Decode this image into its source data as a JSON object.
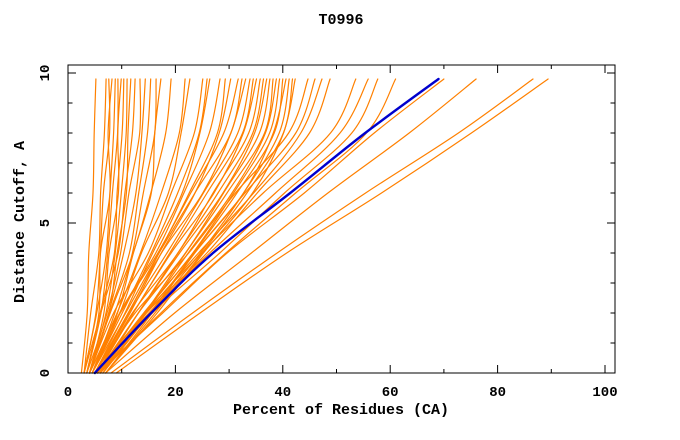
{
  "title": "T0996",
  "colors": {
    "orange_curve": "#ff8000",
    "blue_curve": "#0000cd",
    "axis": "#000000",
    "background": "#ffffff"
  },
  "chart_data": {
    "type": "line",
    "title": "T0996",
    "xlabel": "Percent of Residues (CA)",
    "ylabel": "Distance Cutoff, A",
    "x_axis": {
      "label": "Percent of Residues (CA)",
      "range": [
        0,
        101.9
      ],
      "major_ticks": [
        0,
        20,
        40,
        60,
        80,
        100
      ],
      "minor_ticks": [
        10,
        30,
        50,
        70,
        90
      ]
    },
    "y_axis": {
      "label": "Distance Cutoff, A",
      "range": [
        0,
        10.27
      ],
      "major_ticks": [
        0,
        5,
        10
      ],
      "minor_ticks": [
        1,
        2,
        3,
        4,
        6,
        7,
        8,
        9
      ]
    },
    "grid": false,
    "legend": null,
    "cutoffs": [
      0,
      2,
      4,
      6,
      8,
      9.8
    ],
    "blue_curve_percent_at_cutoffs": [
      5,
      15,
      27.5,
      41,
      55.5,
      69
    ],
    "orange_curves_percent_at_cutoffs": [
      [
        2.5,
        3.5,
        4.0,
        4.5,
        5.0,
        5.2
      ],
      [
        3.0,
        4.5,
        5.5,
        6.2,
        6.8,
        7.1
      ],
      [
        3.0,
        5.0,
        6.0,
        6.8,
        7.4,
        7.6
      ],
      [
        3.5,
        5.5,
        6.5,
        7.3,
        7.9,
        8.2
      ],
      [
        3.0,
        5.5,
        7.0,
        7.9,
        8.5,
        8.8
      ],
      [
        3.5,
        6.0,
        7.4,
        8.4,
        9.0,
        9.3
      ],
      [
        4.0,
        6.5,
        8.0,
        9.0,
        9.6,
        9.9
      ],
      [
        3.5,
        6.5,
        8.2,
        9.4,
        10.1,
        10.4
      ],
      [
        4.0,
        7.0,
        8.8,
        10.0,
        10.7,
        11.0
      ],
      [
        4.0,
        7.5,
        9.4,
        10.6,
        11.4,
        11.7
      ],
      [
        3.0,
        6.5,
        9.0,
        10.8,
        12.0,
        12.5
      ],
      [
        3.5,
        7.0,
        9.8,
        11.6,
        12.9,
        13.4
      ],
      [
        4.0,
        7.5,
        10.5,
        12.5,
        13.9,
        14.4
      ],
      [
        4.0,
        8.0,
        11.2,
        13.3,
        14.8,
        15.4
      ],
      [
        4.5,
        8.5,
        12.0,
        14.2,
        15.8,
        16.4
      ],
      [
        4.5,
        9.0,
        12.6,
        15.0,
        16.6,
        17.3
      ],
      [
        4.0,
        8.0,
        12.0,
        15.5,
        18.2,
        19.2
      ],
      [
        4.0,
        9.0,
        13.5,
        17.5,
        20.5,
        21.8
      ],
      [
        4.5,
        9.5,
        14.0,
        18.3,
        21.4,
        22.7
      ],
      [
        4.0,
        9.0,
        14.5,
        19.5,
        23.5,
        25.1
      ],
      [
        4.5,
        10.0,
        15.5,
        20.5,
        24.3,
        25.9
      ],
      [
        5.0,
        10.5,
        16.0,
        21.0,
        24.8,
        26.4
      ],
      [
        4.5,
        10.0,
        16.0,
        21.8,
        26.3,
        28.3
      ],
      [
        5.0,
        11.0,
        17.0,
        22.8,
        27.4,
        29.3
      ],
      [
        5.0,
        11.5,
        17.5,
        23.5,
        28.3,
        30.3
      ],
      [
        4.0,
        10.0,
        16.5,
        23.0,
        29.0,
        31.7
      ],
      [
        4.5,
        10.5,
        17.0,
        23.8,
        30.0,
        32.4
      ],
      [
        5.0,
        11.0,
        17.8,
        24.6,
        30.8,
        33.1
      ],
      [
        5.0,
        11.5,
        18.3,
        25.3,
        31.6,
        33.9
      ],
      [
        5.5,
        12.0,
        19.0,
        26.0,
        32.3,
        34.5
      ],
      [
        5.0,
        12.0,
        19.5,
        26.8,
        33.0,
        35.1
      ],
      [
        5.5,
        12.5,
        20.0,
        27.3,
        33.6,
        35.8
      ],
      [
        6.0,
        13.0,
        20.5,
        28.0,
        34.3,
        36.4
      ],
      [
        5.5,
        13.0,
        21.0,
        28.6,
        35.0,
        37.0
      ],
      [
        6.0,
        13.5,
        21.5,
        29.2,
        35.6,
        37.6
      ],
      [
        6.0,
        14.0,
        22.0,
        29.8,
        36.2,
        38.2
      ],
      [
        6.5,
        14.5,
        22.5,
        30.4,
        36.9,
        38.8
      ],
      [
        6.0,
        14.5,
        23.0,
        31.0,
        37.5,
        39.4
      ],
      [
        6.5,
        15.0,
        23.5,
        31.6,
        38.1,
        40.0
      ],
      [
        7.0,
        15.5,
        24.0,
        32.2,
        38.7,
        40.6
      ],
      [
        6.5,
        15.5,
        24.5,
        32.8,
        39.3,
        41.2
      ],
      [
        7.0,
        16.0,
        25.0,
        33.4,
        39.9,
        41.8
      ],
      [
        7.0,
        16.5,
        25.5,
        34.0,
        40.5,
        42.3
      ],
      [
        5.0,
        13.0,
        22.0,
        31.5,
        41.0,
        44.7
      ],
      [
        5.5,
        14.0,
        23.5,
        33.0,
        42.3,
        46.0
      ],
      [
        6.0,
        14.5,
        24.5,
        34.3,
        43.6,
        47.3
      ],
      [
        6.0,
        15.0,
        25.5,
        35.5,
        44.9,
        48.8
      ],
      [
        5.0,
        14.0,
        25.0,
        36.5,
        48.5,
        53.6
      ],
      [
        5.5,
        15.0,
        26.5,
        38.5,
        50.8,
        55.9
      ],
      [
        6.0,
        16.0,
        28.0,
        40.5,
        52.8,
        57.7
      ],
      [
        6.0,
        17.0,
        29.5,
        42.5,
        55.3,
        61.0
      ],
      [
        5.5,
        17.5,
        30.0,
        43.5,
        57.5,
        70.0
      ],
      [
        7.0,
        20.0,
        34.0,
        48.5,
        63.5,
        76.0
      ],
      [
        8.0,
        23.0,
        39.0,
        55.5,
        72.5,
        86.6
      ],
      [
        9.0,
        24.5,
        41.0,
        58.0,
        75.5,
        89.4
      ]
    ]
  }
}
